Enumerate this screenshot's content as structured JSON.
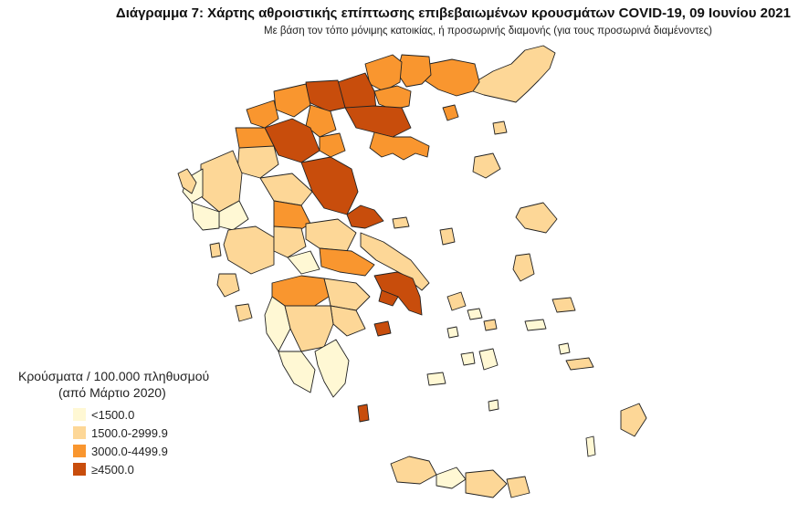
{
  "header": {
    "title": "Διάγραμμα 7: Χάρτης αθροιστικής επίπτωσης επιβεβαιωμένων κρουσμάτων COVID-19, 09 Ιουνίου 2021",
    "subtitle": "Με βάση τον τόπο μόνιμης κατοικίας, ή προσωρινής διαμονής (για τους προσωρινά διαμένοντες)"
  },
  "legend": {
    "title": "Κρούσματα / 100.000 πληθυσμού",
    "subtitle": "(από Μάρτιο 2020)",
    "items": [
      {
        "label": "<1500.0",
        "color": "#fff8d4"
      },
      {
        "label": "1500.0-2999.9",
        "color": "#fdd797"
      },
      {
        "label": "3000.0-4499.9",
        "color": "#f9962f"
      },
      {
        "label": "≥4500.0",
        "color": "#c84d0c"
      }
    ]
  }
}
